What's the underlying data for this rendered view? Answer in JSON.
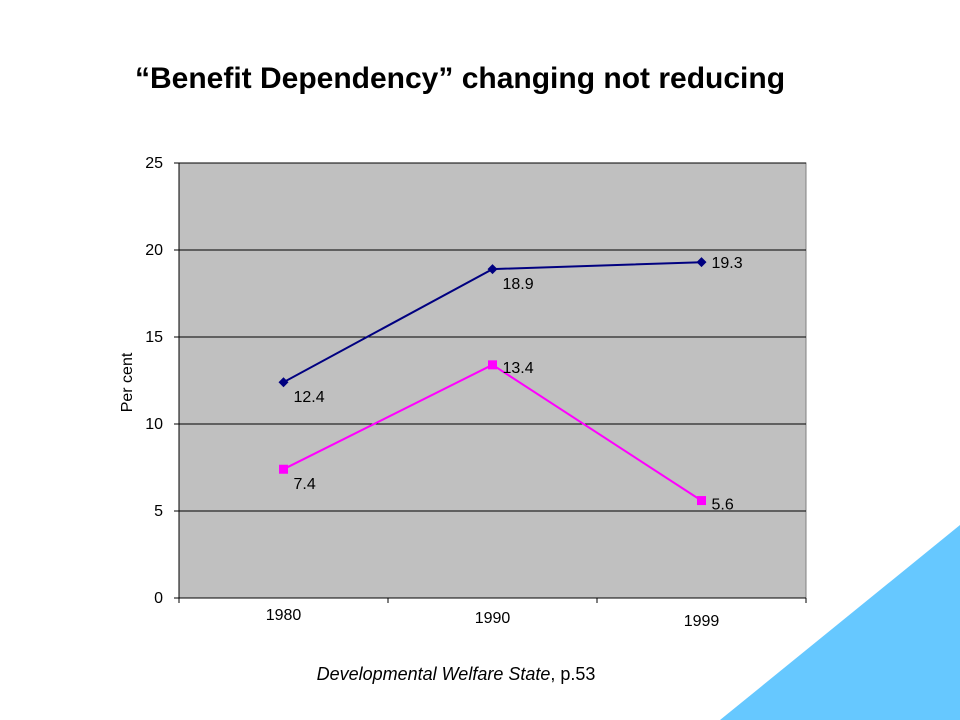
{
  "slide": {
    "title": "“Benefit Dependency” changing not reducing",
    "source_italic": "Developmental Welfare State",
    "source_rest": ", p.53"
  },
  "colors": {
    "plot_background": "#c0c0c0",
    "corner_accent": "#66c8ff"
  },
  "chart_data": {
    "type": "line",
    "categories": [
      "1980",
      "1990",
      "1999"
    ],
    "ylabel": "Per cent",
    "xlabel": "",
    "title": "",
    "ylim": [
      0,
      25
    ],
    "yticks": [
      0,
      5,
      10,
      15,
      20,
      25
    ],
    "grid": true,
    "series": [
      {
        "values": [
          12.4,
          18.9,
          19.3
        ],
        "labels": [
          "12.4",
          "18.9",
          "19.3"
        ],
        "color": "#000080",
        "marker": "diamond"
      },
      {
        "values": [
          7.4,
          13.4,
          5.6
        ],
        "labels": [
          "7.4",
          "13.4",
          "5.6"
        ],
        "color": "#ff00ff",
        "marker": "square"
      }
    ]
  }
}
